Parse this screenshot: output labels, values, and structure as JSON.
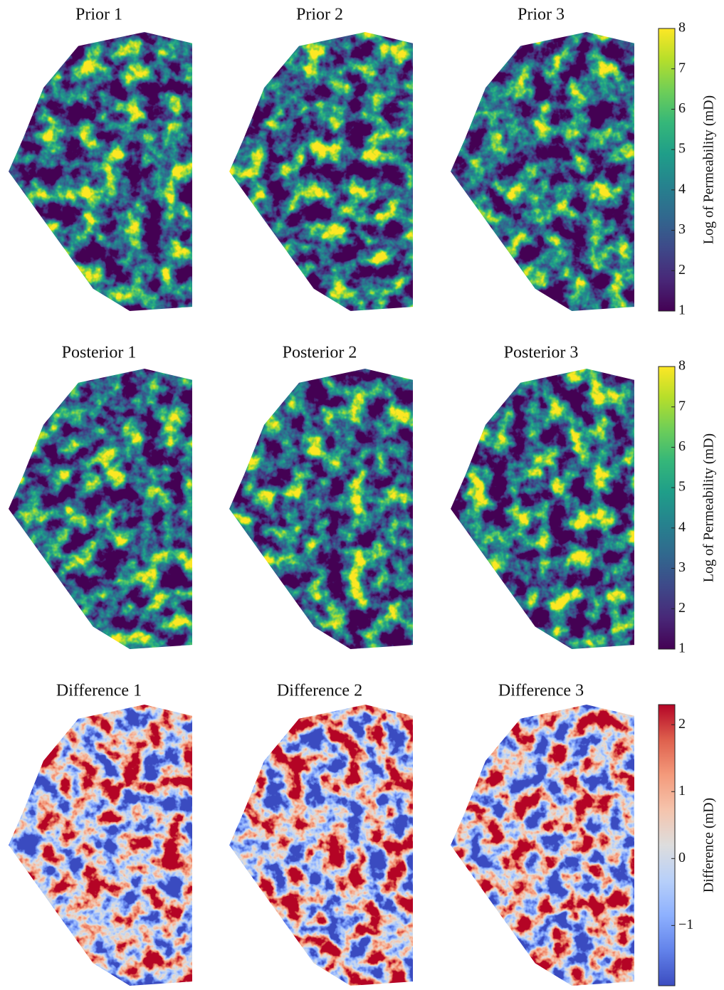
{
  "chart_data": [
    {
      "type": "heatmap",
      "panel_titles": [
        "Prior 1",
        "Prior 2",
        "Prior 3"
      ],
      "colorbar": {
        "label": "Log of Permeability (mD)",
        "ylim": [
          1,
          8
        ],
        "yticks": [
          1,
          2,
          3,
          4,
          5,
          6,
          7,
          8
        ],
        "colormap": [
          "#440154",
          "#482878",
          "#3e4989",
          "#31688e",
          "#26828e",
          "#1f9e89",
          "#35b779",
          "#6ece58",
          "#b5de2b",
          "#fde725"
        ]
      }
    },
    {
      "type": "heatmap",
      "panel_titles": [
        "Posterior 1",
        "Posterior 2",
        "Posterior 3"
      ],
      "colorbar": {
        "label": "Log of Permeability (mD)",
        "ylim": [
          1,
          8
        ],
        "yticks": [
          1,
          2,
          3,
          4,
          5,
          6,
          7,
          8
        ],
        "colormap": [
          "#440154",
          "#482878",
          "#3e4989",
          "#31688e",
          "#26828e",
          "#1f9e89",
          "#35b779",
          "#6ece58",
          "#b5de2b",
          "#fde725"
        ]
      }
    },
    {
      "type": "heatmap",
      "panel_titles": [
        "Difference 1",
        "Difference 2",
        "Difference 3"
      ],
      "colorbar": {
        "label": "Difference (mD)",
        "ylim": [
          -1.9,
          2.3
        ],
        "yticks": [
          {
            "value": -1,
            "label": "−1"
          },
          0,
          1,
          2
        ],
        "colormap": [
          "#3b4cc0",
          "#6282ea",
          "#8db0fe",
          "#b8d0f9",
          "#dddddd",
          "#f5c4ad",
          "#f49a7b",
          "#de604d",
          "#b40426"
        ]
      }
    }
  ]
}
